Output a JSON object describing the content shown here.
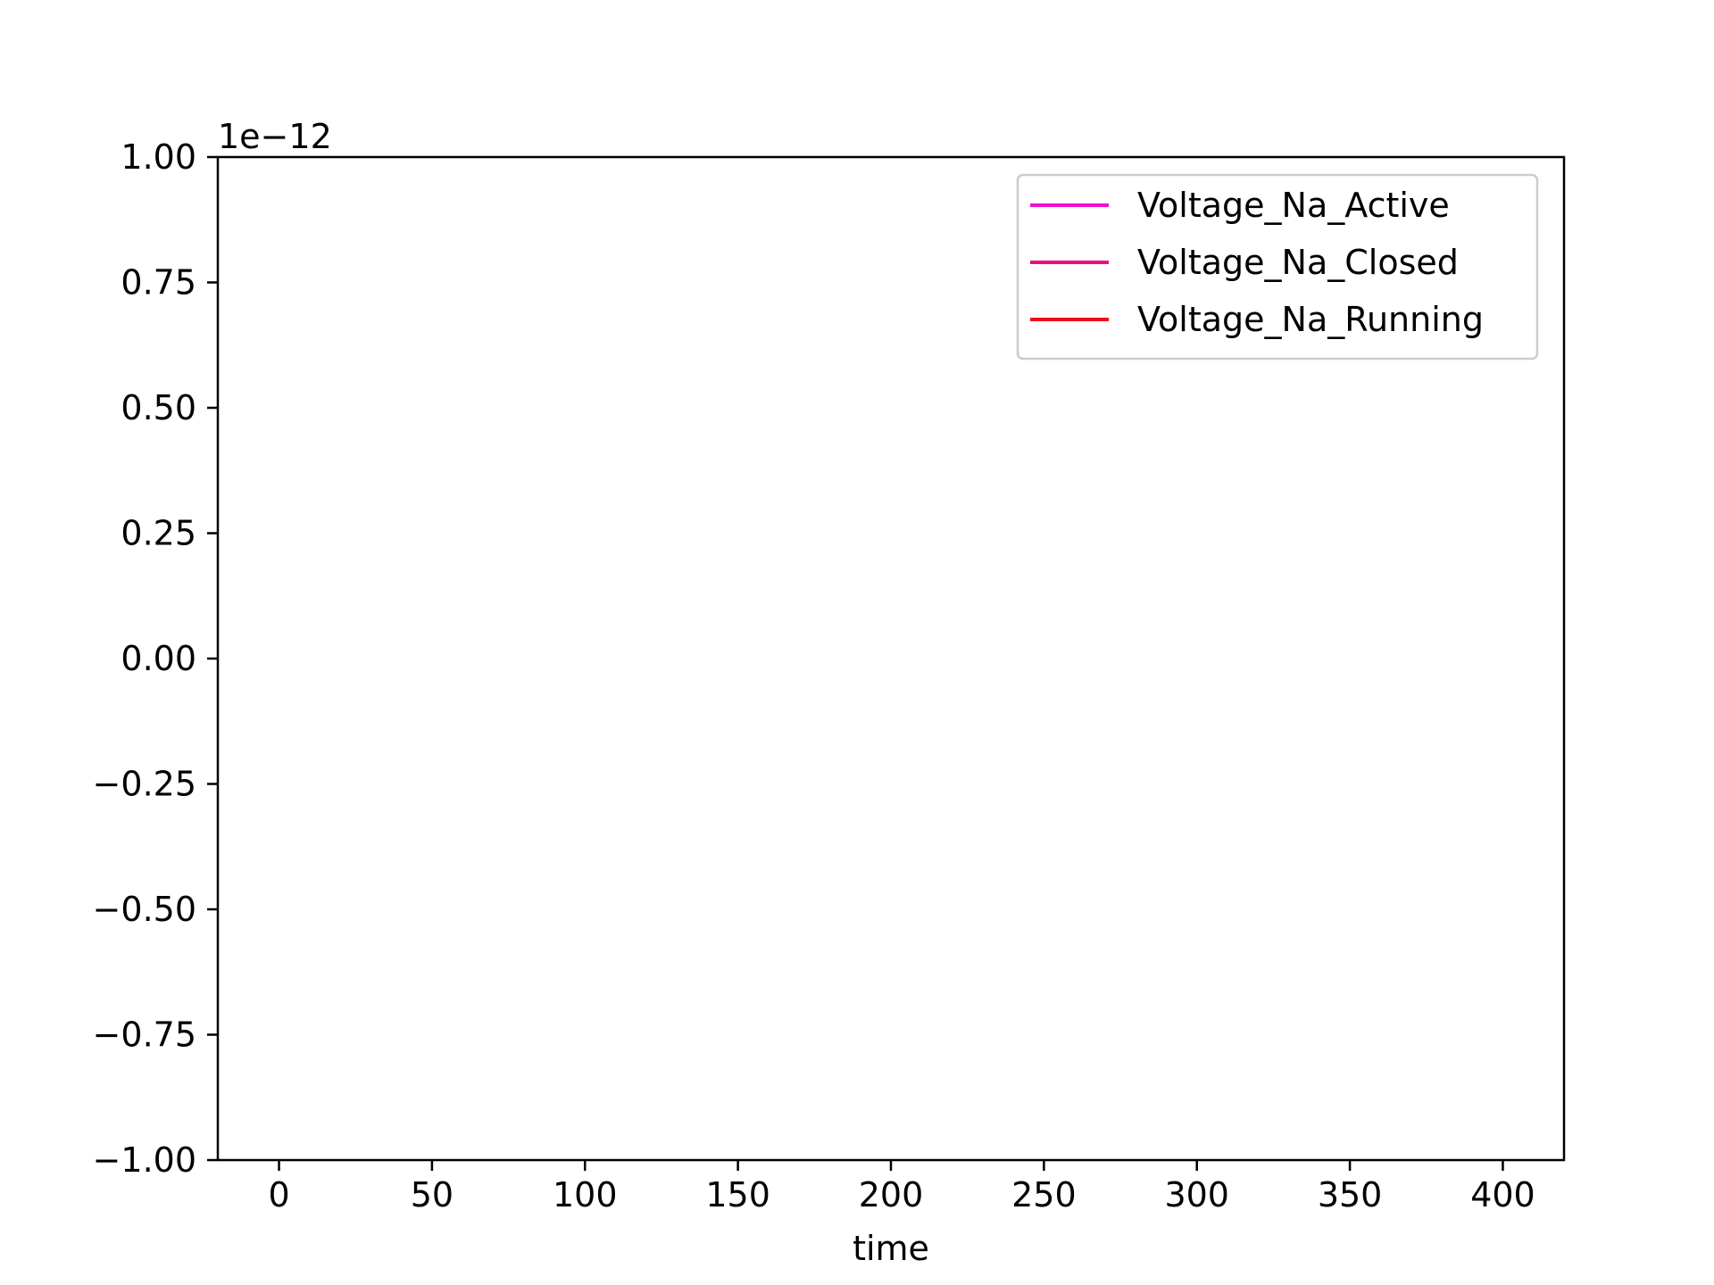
{
  "chart_data": {
    "type": "line",
    "title": "",
    "xlabel": "time",
    "ylabel": "",
    "y_offset_text": "1e−12",
    "xlim": [
      -20,
      420
    ],
    "ylim": [
      -1.0,
      1.0
    ],
    "x_ticks": [
      0,
      50,
      100,
      150,
      200,
      250,
      300,
      350,
      400
    ],
    "x_tick_labels": [
      "0",
      "50",
      "100",
      "150",
      "200",
      "250",
      "300",
      "350",
      "400"
    ],
    "y_ticks": [
      1.0,
      0.75,
      0.5,
      0.25,
      0.0,
      -0.25,
      -0.5,
      -0.75,
      -1.0
    ],
    "y_tick_labels": [
      "1.00",
      "0.75",
      "0.50",
      "0.25",
      "0.00",
      "−0.25",
      "−0.50",
      "−0.75",
      "−1.00"
    ],
    "grid": false,
    "legend_placement": "upper-right",
    "series": [
      {
        "name": "Voltage_Na_Active",
        "color": "#ee0fd4",
        "x": [],
        "y": []
      },
      {
        "name": "Voltage_Na_Closed",
        "color": "#f00c7c",
        "x": [],
        "y": []
      },
      {
        "name": "Voltage_Na_Running",
        "color": "#ee0a1e",
        "x": [],
        "y": []
      }
    ]
  }
}
